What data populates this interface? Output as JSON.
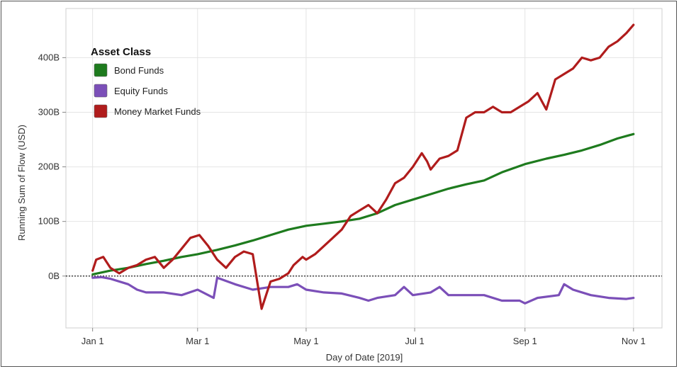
{
  "chart_data": {
    "type": "line",
    "title": "",
    "xlabel": "Day of Date [2019]",
    "ylabel": "Running Sum of Flow (USD)",
    "x_ticks": [
      {
        "label": "Jan 1",
        "day": 0
      },
      {
        "label": "Mar 1",
        "day": 59
      },
      {
        "label": "May 1",
        "day": 120
      },
      {
        "label": "Jul 1",
        "day": 181
      },
      {
        "label": "Sep 1",
        "day": 243
      },
      {
        "label": "Nov 1",
        "day": 304
      }
    ],
    "xlim": [
      -15,
      320
    ],
    "y_ticks": [
      {
        "label": "0B",
        "value": 0
      },
      {
        "label": "100B",
        "value": 100
      },
      {
        "label": "200B",
        "value": 200
      },
      {
        "label": "300B",
        "value": 300
      },
      {
        "label": "400B",
        "value": 400
      }
    ],
    "ylim": [
      -95,
      490
    ],
    "reference_line": {
      "value": 0,
      "style": "dotted"
    },
    "grid": true,
    "legend": {
      "title": "Asset Class",
      "position": "top-left"
    },
    "series": [
      {
        "name": "Bond Funds",
        "color": "#1e7b1e",
        "x": [
          0,
          10,
          20,
          30,
          40,
          50,
          59,
          70,
          80,
          90,
          100,
          110,
          120,
          130,
          140,
          150,
          160,
          170,
          180,
          190,
          200,
          210,
          220,
          230,
          243,
          255,
          265,
          275,
          285,
          295,
          304
        ],
        "y": [
          3,
          10,
          15,
          22,
          28,
          35,
          40,
          48,
          56,
          65,
          75,
          85,
          92,
          96,
          100,
          105,
          115,
          130,
          140,
          150,
          160,
          168,
          175,
          190,
          205,
          215,
          222,
          230,
          240,
          252,
          260
        ]
      },
      {
        "name": "Equity Funds",
        "color": "#7b4fb8",
        "x": [
          0,
          5,
          10,
          20,
          25,
          30,
          40,
          50,
          59,
          68,
          70,
          80,
          90,
          100,
          110,
          115,
          120,
          130,
          140,
          150,
          155,
          160,
          170,
          175,
          180,
          190,
          195,
          200,
          210,
          220,
          230,
          240,
          243,
          250,
          262,
          265,
          270,
          280,
          290,
          300,
          304
        ],
        "y": [
          -3,
          -2,
          -5,
          -15,
          -25,
          -30,
          -30,
          -35,
          -25,
          -40,
          -3,
          -15,
          -25,
          -20,
          -20,
          -15,
          -25,
          -30,
          -32,
          -40,
          -45,
          -40,
          -35,
          -20,
          -35,
          -30,
          -20,
          -35,
          -35,
          -35,
          -45,
          -45,
          -50,
          -40,
          -35,
          -15,
          -25,
          -35,
          -40,
          -42,
          -40
        ]
      },
      {
        "name": "Money Market Funds",
        "color": "#b01c1c",
        "x": [
          0,
          2,
          6,
          10,
          15,
          20,
          25,
          30,
          35,
          40,
          45,
          50,
          55,
          60,
          65,
          70,
          75,
          80,
          85,
          90,
          95,
          100,
          105,
          110,
          113,
          118,
          120,
          125,
          130,
          135,
          140,
          145,
          150,
          155,
          160,
          165,
          170,
          175,
          180,
          185,
          188,
          190,
          195,
          200,
          205,
          210,
          215,
          220,
          225,
          230,
          235,
          240,
          245,
          250,
          255,
          260,
          265,
          270,
          275,
          280,
          285,
          290,
          295,
          300,
          304
        ],
        "y": [
          10,
          30,
          35,
          15,
          5,
          15,
          20,
          30,
          35,
          15,
          30,
          50,
          70,
          75,
          55,
          30,
          15,
          35,
          45,
          40,
          -60,
          -10,
          -5,
          5,
          20,
          35,
          30,
          40,
          55,
          70,
          85,
          110,
          120,
          130,
          115,
          140,
          170,
          180,
          200,
          225,
          210,
          195,
          215,
          220,
          230,
          290,
          300,
          300,
          310,
          300,
          300,
          310,
          320,
          335,
          305,
          360,
          370,
          380,
          400,
          395,
          400,
          420,
          430,
          445,
          460
        ]
      }
    ]
  }
}
